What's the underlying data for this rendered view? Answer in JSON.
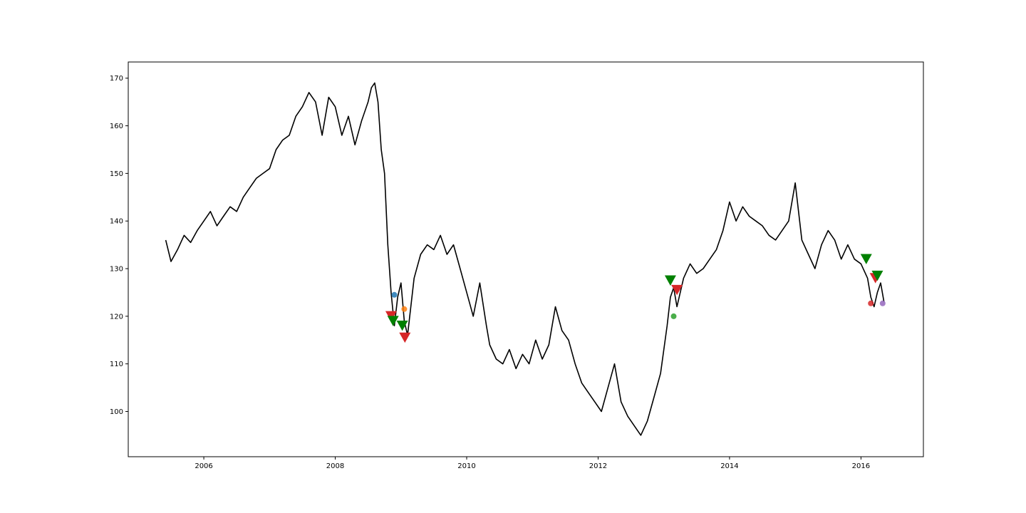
{
  "chart_data": {
    "type": "line",
    "title": "",
    "xlabel": "",
    "ylabel": "",
    "xlim": [
      2004.85,
      2016.95
    ],
    "ylim": [
      90.5,
      173.4
    ],
    "grid": false,
    "legend": "none",
    "x_ticks": [
      2006,
      2008,
      2010,
      2012,
      2014,
      2016
    ],
    "x_tick_labels": [
      "2006",
      "2008",
      "2010",
      "2012",
      "2014",
      "2016"
    ],
    "y_ticks": [
      100,
      110,
      120,
      130,
      140,
      150,
      160,
      170
    ],
    "y_tick_labels": [
      "100",
      "110",
      "120",
      "130",
      "140",
      "150",
      "160",
      "170"
    ],
    "line_color": "#000000",
    "series": [
      {
        "x": [
          2005.42,
          2005.5,
          2005.6,
          2005.7,
          2005.8,
          2005.9,
          2006.0,
          2006.1,
          2006.2,
          2006.3,
          2006.4,
          2006.5,
          2006.6,
          2006.7,
          2006.8,
          2006.9,
          2007.0,
          2007.1,
          2007.2,
          2007.3,
          2007.4,
          2007.5,
          2007.6,
          2007.7,
          2007.8,
          2007.9,
          2008.0,
          2008.1,
          2008.2,
          2008.3,
          2008.4,
          2008.5,
          2008.55,
          2008.6,
          2008.65,
          2008.7,
          2008.75,
          2008.8,
          2008.85,
          2008.9,
          2008.95,
          2009.0,
          2009.05,
          2009.1,
          2009.2,
          2009.3,
          2009.4,
          2009.5,
          2009.6,
          2009.7,
          2009.8,
          2009.9,
          2010.0,
          2010.1,
          2010.2,
          2010.3,
          2010.35,
          2010.45,
          2010.55,
          2010.65,
          2010.75,
          2010.85,
          2010.95,
          2011.05,
          2011.15,
          2011.25,
          2011.35,
          2011.45,
          2011.55,
          2011.65,
          2011.75,
          2011.85,
          2011.95,
          2012.05,
          2012.15,
          2012.25,
          2012.35,
          2012.45,
          2012.55,
          2012.65,
          2012.75,
          2012.85,
          2012.95,
          2013.05,
          2013.1,
          2013.15,
          2013.2,
          2013.3,
          2013.4,
          2013.5,
          2013.6,
          2013.7,
          2013.8,
          2013.9,
          2014.0,
          2014.1,
          2014.2,
          2014.3,
          2014.4,
          2014.5,
          2014.6,
          2014.7,
          2014.8,
          2014.9,
          2014.95,
          2015.0,
          2015.1,
          2015.2,
          2015.3,
          2015.4,
          2015.5,
          2015.6,
          2015.7,
          2015.8,
          2015.9,
          2016.0,
          2016.1,
          2016.15,
          2016.2,
          2016.25,
          2016.3,
          2016.35
        ],
        "y": [
          136,
          131.5,
          134,
          137,
          135.5,
          138,
          140,
          142,
          139,
          141,
          143,
          142,
          145,
          147,
          149,
          150,
          151,
          155,
          157,
          158,
          162,
          164,
          167,
          165,
          158,
          166,
          164,
          158,
          162,
          156,
          161,
          165,
          168,
          169,
          165,
          155,
          150,
          135,
          125,
          118,
          124,
          127,
          119,
          116,
          128,
          133,
          135,
          134,
          137,
          133,
          135,
          130,
          125,
          120,
          127,
          118,
          114,
          111,
          110,
          113,
          109,
          112,
          110,
          115,
          111,
          114,
          122,
          117,
          115,
          110,
          106,
          104,
          102,
          100,
          105,
          110,
          102,
          99,
          97,
          95,
          98,
          103,
          108,
          118,
          124,
          126,
          122,
          128,
          131,
          129,
          130,
          132,
          134,
          138,
          144,
          140,
          143,
          141,
          140,
          139,
          137,
          136,
          138,
          140,
          144,
          148,
          136,
          133,
          130,
          135,
          138,
          136,
          132,
          135,
          132,
          131,
          128,
          124,
          122,
          125,
          127,
          123
        ]
      }
    ],
    "markers": [
      {
        "type": "triangle-down",
        "color": "#d62728",
        "x": 2008.85,
        "y": 120
      },
      {
        "type": "triangle-down",
        "color": "#008000",
        "x": 2008.88,
        "y": 119
      },
      {
        "type": "triangle-down",
        "color": "#008000",
        "x": 2009.02,
        "y": 118
      },
      {
        "type": "triangle-down",
        "color": "#d62728",
        "x": 2009.06,
        "y": 115.5
      },
      {
        "type": "circle",
        "color": "#1f77b4",
        "x": 2008.9,
        "y": 124.5
      },
      {
        "type": "circle",
        "color": "#ff7f0e",
        "x": 2009.05,
        "y": 121.5
      },
      {
        "type": "triangle-down",
        "color": "#008000",
        "x": 2013.1,
        "y": 127.5
      },
      {
        "type": "triangle-down",
        "color": "#d62728",
        "x": 2013.2,
        "y": 125.5
      },
      {
        "type": "circle",
        "color": "#2ca02c",
        "x": 2013.15,
        "y": 120
      },
      {
        "type": "triangle-down",
        "color": "#008000",
        "x": 2016.08,
        "y": 132
      },
      {
        "type": "triangle-down",
        "color": "#d62728",
        "x": 2016.22,
        "y": 128
      },
      {
        "type": "triangle-down",
        "color": "#008000",
        "x": 2016.25,
        "y": 128.5
      },
      {
        "type": "circle",
        "color": "#d62728",
        "x": 2016.15,
        "y": 122.7
      },
      {
        "type": "circle",
        "color": "#9467bd",
        "x": 2016.33,
        "y": 122.7
      }
    ]
  }
}
